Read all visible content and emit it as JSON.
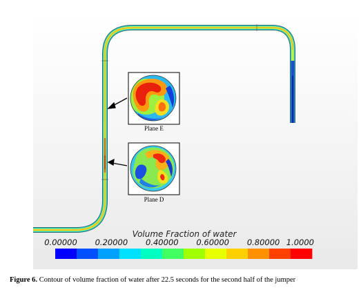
{
  "figure": {
    "caption_label": "Figure 6.",
    "caption_text": "Contour of volume fraction of water after 22.5 seconds for the second half of the jumper"
  },
  "scale": {
    "title": "Volume Fraction of water",
    "ticks": [
      "0.00000",
      "0.20000",
      "0.40000",
      "0.60000",
      "0.80000",
      "1.0000"
    ],
    "colors": [
      "#0000ff",
      "#0050ff",
      "#00a0ff",
      "#00e0ff",
      "#00ffc0",
      "#40ff60",
      "#a0ff00",
      "#e8ff00",
      "#ffd000",
      "#ff9000",
      "#ff4000",
      "#ff0000"
    ]
  },
  "planes": [
    {
      "id": "E",
      "label": "Plane E"
    },
    {
      "id": "D",
      "label": "Plane D"
    }
  ]
}
